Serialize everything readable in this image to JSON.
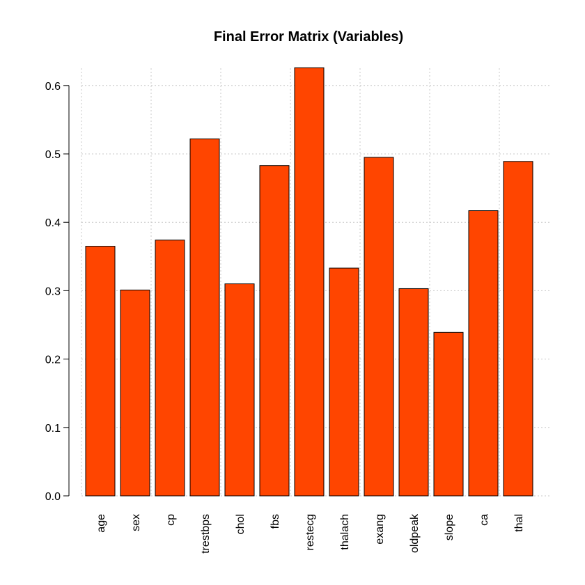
{
  "chart_data": {
    "type": "bar",
    "title": "Final Error Matrix (Variables)",
    "xlabel": "",
    "ylabel": "",
    "categories": [
      "age",
      "sex",
      "cp",
      "trestbps",
      "chol",
      "fbs",
      "restecg",
      "thalach",
      "exang",
      "oldpeak",
      "slope",
      "ca",
      "thal"
    ],
    "values": [
      0.365,
      0.301,
      0.374,
      0.522,
      0.31,
      0.483,
      0.626,
      0.333,
      0.495,
      0.303,
      0.239,
      0.417,
      0.489
    ],
    "ylim": [
      0,
      0.63
    ],
    "yticks": [
      "0.0",
      "0.1",
      "0.2",
      "0.3",
      "0.4",
      "0.5",
      "0.6"
    ],
    "grid": true,
    "bar_color": "#ff4500",
    "grid_color": "#c8c8c8"
  }
}
